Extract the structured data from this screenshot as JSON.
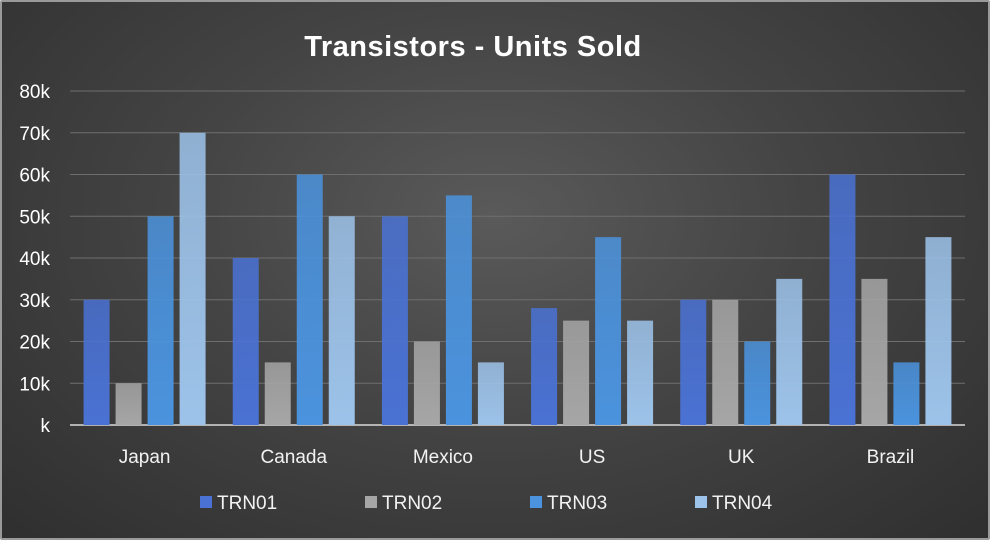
{
  "chart_data": {
    "type": "bar",
    "title": "Transistors - Units Sold",
    "xlabel": "",
    "ylabel": "",
    "categories": [
      "Japan",
      "Canada",
      "Mexico",
      "US",
      "UK",
      "Brazil"
    ],
    "series": [
      {
        "name": "TRN01",
        "color": "#4a72d4",
        "values": [
          30000,
          40000,
          50000,
          28000,
          30000,
          60000
        ]
      },
      {
        "name": "TRN02",
        "color": "#a6a6a6",
        "values": [
          10000,
          15000,
          20000,
          25000,
          30000,
          35000
        ]
      },
      {
        "name": "TRN03",
        "color": "#4b93de",
        "values": [
          50000,
          60000,
          55000,
          45000,
          20000,
          15000
        ]
      },
      {
        "name": "TRN04",
        "color": "#9dc3ea",
        "values": [
          70000,
          50000,
          15000,
          25000,
          35000,
          45000
        ]
      }
    ],
    "y_ticks": [
      0,
      10000,
      20000,
      30000,
      40000,
      50000,
      60000,
      70000,
      80000
    ],
    "y_tick_labels": [
      "k",
      "10k",
      "20k",
      "30k",
      "40k",
      "50k",
      "60k",
      "70k",
      "80k"
    ],
    "ylim": [
      0,
      80000
    ],
    "grid": true,
    "legend": "bottom"
  }
}
